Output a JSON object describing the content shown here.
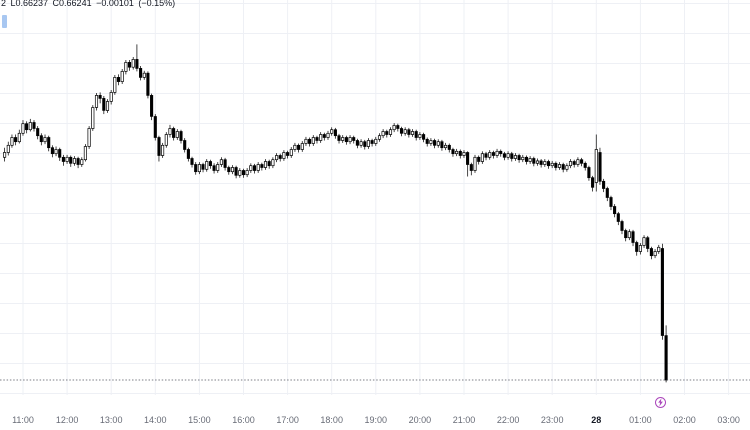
{
  "legend": {
    "text": "2 L0.66237 C0.66241 −0.00101 (−0.15%)"
  },
  "colors": {
    "background": "#ffffff",
    "grid": "#eef0f5",
    "axis_border": "#e6e8ee",
    "candle_up_fill": "#ffffff",
    "candle_down_fill": "#000000",
    "candle_border": "#000000",
    "wick": "#1a1a1a",
    "price_line": "#50535e",
    "axis_label": "#676b76",
    "axis_label_day": "#131722",
    "legend_text": "#131722",
    "event_marker": "#ab47bc",
    "selection_artifact": "#9ec1f0"
  },
  "time_axis": {
    "labels": [
      {
        "text": "11:00",
        "bold": false
      },
      {
        "text": "12:00",
        "bold": false
      },
      {
        "text": "13:00",
        "bold": false
      },
      {
        "text": "14:00",
        "bold": false
      },
      {
        "text": "15:00",
        "bold": false
      },
      {
        "text": "16:00",
        "bold": false
      },
      {
        "text": "17:00",
        "bold": false
      },
      {
        "text": "18:00",
        "bold": false
      },
      {
        "text": "19:00",
        "bold": false
      },
      {
        "text": "20:00",
        "bold": false
      },
      {
        "text": "21:00",
        "bold": false
      },
      {
        "text": "22:00",
        "bold": false
      },
      {
        "text": "23:00",
        "bold": false
      },
      {
        "text": "28",
        "bold": true
      },
      {
        "text": "01:00",
        "bold": false
      },
      {
        "text": "02:00",
        "bold": false
      },
      {
        "text": "03:00",
        "bold": false
      }
    ]
  },
  "event_marker": {
    "icon": "lightning-bolt",
    "color": "#ab47bc"
  },
  "price_line": {
    "value": 0.66241,
    "style": "dashed"
  },
  "chart_data": {
    "type": "candlestick",
    "title": "",
    "xlabel": "",
    "ylabel": "",
    "grid": true,
    "x_start_time": "10:35",
    "interval_minutes": 5,
    "x_axis_labels": [
      "11:00",
      "12:00",
      "13:00",
      "14:00",
      "15:00",
      "16:00",
      "17:00",
      "18:00",
      "19:00",
      "20:00",
      "21:00",
      "22:00",
      "23:00",
      "28",
      "01:00",
      "02:00",
      "03:00"
    ],
    "ylim": [
      0.66216,
      0.66874
    ],
    "last_close": 0.66241,
    "last_low": 0.66237,
    "change": -0.00101,
    "change_pct": -0.15,
    "candles_format": [
      "open",
      "high",
      "low",
      "close"
    ],
    "candles": [
      [
        0.66612,
        0.66628,
        0.66605,
        0.6662
      ],
      [
        0.6662,
        0.66638,
        0.66615,
        0.66632
      ],
      [
        0.66632,
        0.6665,
        0.66628,
        0.66645
      ],
      [
        0.66645,
        0.6665,
        0.66632,
        0.66638
      ],
      [
        0.66638,
        0.66658,
        0.66635,
        0.66652
      ],
      [
        0.66652,
        0.66674,
        0.66648,
        0.66668
      ],
      [
        0.66668,
        0.66672,
        0.66652,
        0.66658
      ],
      [
        0.66658,
        0.66676,
        0.66655,
        0.6667
      ],
      [
        0.6667,
        0.66674,
        0.66655,
        0.6666
      ],
      [
        0.6666,
        0.66664,
        0.66642,
        0.66648
      ],
      [
        0.66648,
        0.66652,
        0.66632,
        0.66638
      ],
      [
        0.66638,
        0.6665,
        0.66634,
        0.66645
      ],
      [
        0.66645,
        0.66648,
        0.66622,
        0.66628
      ],
      [
        0.66628,
        0.66632,
        0.66612,
        0.66618
      ],
      [
        0.66618,
        0.6663,
        0.66614,
        0.66625
      ],
      [
        0.66625,
        0.66628,
        0.66606,
        0.66612
      ],
      [
        0.66612,
        0.66616,
        0.66598,
        0.66605
      ],
      [
        0.66605,
        0.66616,
        0.66601,
        0.66612
      ],
      [
        0.66612,
        0.66615,
        0.66596,
        0.66602
      ],
      [
        0.66602,
        0.66614,
        0.66598,
        0.6661
      ],
      [
        0.6661,
        0.66613,
        0.66594,
        0.666
      ],
      [
        0.666,
        0.66612,
        0.66596,
        0.66608
      ],
      [
        0.66608,
        0.66634,
        0.66605,
        0.6663
      ],
      [
        0.6663,
        0.66664,
        0.66626,
        0.6666
      ],
      [
        0.6666,
        0.66699,
        0.66656,
        0.66695
      ],
      [
        0.66695,
        0.66719,
        0.6669,
        0.66715
      ],
      [
        0.66715,
        0.6672,
        0.66702,
        0.6671
      ],
      [
        0.6671,
        0.66714,
        0.66684,
        0.6669
      ],
      [
        0.6669,
        0.66709,
        0.66686,
        0.66705
      ],
      [
        0.66705,
        0.66724,
        0.667,
        0.6672
      ],
      [
        0.6672,
        0.66749,
        0.66716,
        0.66745
      ],
      [
        0.66745,
        0.6675,
        0.66732,
        0.66738
      ],
      [
        0.66738,
        0.66759,
        0.66734,
        0.66755
      ],
      [
        0.66755,
        0.66774,
        0.6675,
        0.6677
      ],
      [
        0.6677,
        0.66774,
        0.66756,
        0.66762
      ],
      [
        0.66762,
        0.66779,
        0.66758,
        0.66775
      ],
      [
        0.66775,
        0.668,
        0.66755,
        0.6676
      ],
      [
        0.6676,
        0.66764,
        0.6674,
        0.66745
      ],
      [
        0.66745,
        0.66756,
        0.66741,
        0.66752
      ],
      [
        0.66752,
        0.66755,
        0.6671,
        0.66715
      ],
      [
        0.66715,
        0.66718,
        0.66674,
        0.6668
      ],
      [
        0.6668,
        0.66684,
        0.6664,
        0.66645
      ],
      [
        0.66645,
        0.66648,
        0.66605,
        0.66615
      ],
      [
        0.66615,
        0.66636,
        0.66611,
        0.66632
      ],
      [
        0.66632,
        0.66654,
        0.66628,
        0.6665
      ],
      [
        0.6665,
        0.66666,
        0.66645,
        0.6666
      ],
      [
        0.6666,
        0.66663,
        0.6664,
        0.66645
      ],
      [
        0.66645,
        0.66659,
        0.66641,
        0.66655
      ],
      [
        0.66655,
        0.66658,
        0.66635,
        0.6664
      ],
      [
        0.6664,
        0.66644,
        0.6662,
        0.66625
      ],
      [
        0.66625,
        0.66628,
        0.66605,
        0.6661
      ],
      [
        0.6661,
        0.66613,
        0.66595,
        0.666
      ],
      [
        0.666,
        0.66604,
        0.66583,
        0.66588
      ],
      [
        0.66588,
        0.66604,
        0.66584,
        0.666
      ],
      [
        0.666,
        0.66603,
        0.66587,
        0.66592
      ],
      [
        0.66592,
        0.66609,
        0.66588,
        0.66605
      ],
      [
        0.66605,
        0.66608,
        0.66593,
        0.66598
      ],
      [
        0.66598,
        0.66602,
        0.66585,
        0.6659
      ],
      [
        0.6659,
        0.66604,
        0.66586,
        0.666
      ],
      [
        0.666,
        0.66612,
        0.66596,
        0.66608
      ],
      [
        0.66608,
        0.66611,
        0.6659,
        0.66595
      ],
      [
        0.66595,
        0.66598,
        0.66583,
        0.66588
      ],
      [
        0.66588,
        0.66599,
        0.66584,
        0.66595
      ],
      [
        0.66595,
        0.66598,
        0.66577,
        0.66582
      ],
      [
        0.66582,
        0.66594,
        0.66578,
        0.6659
      ],
      [
        0.6659,
        0.66593,
        0.66578,
        0.66583
      ],
      [
        0.66583,
        0.66594,
        0.66579,
        0.6659
      ],
      [
        0.6659,
        0.66602,
        0.66586,
        0.66598
      ],
      [
        0.66598,
        0.66601,
        0.66585,
        0.6659
      ],
      [
        0.6659,
        0.66604,
        0.66586,
        0.666
      ],
      [
        0.666,
        0.66603,
        0.6659,
        0.66595
      ],
      [
        0.66595,
        0.66609,
        0.66591,
        0.66605
      ],
      [
        0.66605,
        0.66608,
        0.66593,
        0.66598
      ],
      [
        0.66598,
        0.66612,
        0.66594,
        0.66608
      ],
      [
        0.66608,
        0.66619,
        0.66604,
        0.66615
      ],
      [
        0.66615,
        0.66618,
        0.66605,
        0.6661
      ],
      [
        0.6661,
        0.66624,
        0.66606,
        0.6662
      ],
      [
        0.6662,
        0.66623,
        0.6661,
        0.66615
      ],
      [
        0.66615,
        0.66629,
        0.66611,
        0.66625
      ],
      [
        0.66625,
        0.66636,
        0.66621,
        0.66632
      ],
      [
        0.66632,
        0.66635,
        0.6662,
        0.66625
      ],
      [
        0.66625,
        0.66639,
        0.66621,
        0.66635
      ],
      [
        0.66635,
        0.66646,
        0.66631,
        0.66642
      ],
      [
        0.66642,
        0.66645,
        0.6663,
        0.66635
      ],
      [
        0.66635,
        0.66649,
        0.66631,
        0.66645
      ],
      [
        0.66645,
        0.66648,
        0.66635,
        0.6664
      ],
      [
        0.6664,
        0.66654,
        0.66636,
        0.6665
      ],
      [
        0.6665,
        0.66653,
        0.6664,
        0.66645
      ],
      [
        0.66645,
        0.66656,
        0.66641,
        0.66652
      ],
      [
        0.66652,
        0.66662,
        0.66648,
        0.66658
      ],
      [
        0.66658,
        0.66661,
        0.66643,
        0.66648
      ],
      [
        0.66648,
        0.66651,
        0.66635,
        0.6664
      ],
      [
        0.6664,
        0.66649,
        0.66636,
        0.66645
      ],
      [
        0.66645,
        0.66648,
        0.66633,
        0.66638
      ],
      [
        0.66638,
        0.66649,
        0.66634,
        0.66645
      ],
      [
        0.66645,
        0.66648,
        0.66635,
        0.6664
      ],
      [
        0.6664,
        0.66643,
        0.66627,
        0.66632
      ],
      [
        0.66632,
        0.66642,
        0.66628,
        0.66638
      ],
      [
        0.66638,
        0.66641,
        0.66625,
        0.6663
      ],
      [
        0.6663,
        0.66644,
        0.66626,
        0.6664
      ],
      [
        0.6664,
        0.66643,
        0.6663,
        0.66635
      ],
      [
        0.66635,
        0.66646,
        0.66631,
        0.66642
      ],
      [
        0.66642,
        0.66652,
        0.66638,
        0.66648
      ],
      [
        0.66648,
        0.66659,
        0.66644,
        0.66655
      ],
      [
        0.66655,
        0.66658,
        0.66645,
        0.6665
      ],
      [
        0.6665,
        0.66662,
        0.66646,
        0.66658
      ],
      [
        0.66658,
        0.66669,
        0.66654,
        0.66665
      ],
      [
        0.66665,
        0.66668,
        0.66655,
        0.6666
      ],
      [
        0.6666,
        0.66663,
        0.66647,
        0.66652
      ],
      [
        0.66652,
        0.66662,
        0.66648,
        0.66658
      ],
      [
        0.66658,
        0.66661,
        0.66645,
        0.6665
      ],
      [
        0.6665,
        0.66659,
        0.66646,
        0.66655
      ],
      [
        0.66655,
        0.66658,
        0.6664,
        0.66645
      ],
      [
        0.66645,
        0.66654,
        0.66641,
        0.6665
      ],
      [
        0.6665,
        0.66653,
        0.66637,
        0.66642
      ],
      [
        0.66642,
        0.66645,
        0.6663,
        0.66635
      ],
      [
        0.66635,
        0.66644,
        0.66631,
        0.6664
      ],
      [
        0.6664,
        0.66643,
        0.66627,
        0.66632
      ],
      [
        0.66632,
        0.66642,
        0.66628,
        0.66638
      ],
      [
        0.66638,
        0.66641,
        0.66623,
        0.66628
      ],
      [
        0.66628,
        0.66636,
        0.66624,
        0.66632
      ],
      [
        0.66632,
        0.66635,
        0.6662,
        0.66625
      ],
      [
        0.66625,
        0.66628,
        0.66613,
        0.66618
      ],
      [
        0.66618,
        0.66626,
        0.66614,
        0.66622
      ],
      [
        0.66622,
        0.66625,
        0.6661,
        0.66615
      ],
      [
        0.66615,
        0.66624,
        0.66611,
        0.6662
      ],
      [
        0.6662,
        0.66622,
        0.6658,
        0.666
      ],
      [
        0.666,
        0.66603,
        0.66582,
        0.6659
      ],
      [
        0.6659,
        0.66616,
        0.66586,
        0.66612
      ],
      [
        0.66612,
        0.66615,
        0.666,
        0.66605
      ],
      [
        0.66605,
        0.66622,
        0.66601,
        0.66618
      ],
      [
        0.66618,
        0.66621,
        0.66607,
        0.66612
      ],
      [
        0.66612,
        0.66624,
        0.66608,
        0.6662
      ],
      [
        0.6662,
        0.66623,
        0.6661,
        0.66615
      ],
      [
        0.66615,
        0.66626,
        0.66611,
        0.66622
      ],
      [
        0.66622,
        0.66625,
        0.66613,
        0.66618
      ],
      [
        0.66618,
        0.66621,
        0.66607,
        0.66612
      ],
      [
        0.66612,
        0.66622,
        0.66608,
        0.66618
      ],
      [
        0.66618,
        0.66621,
        0.66605,
        0.6661
      ],
      [
        0.6661,
        0.66619,
        0.66606,
        0.66615
      ],
      [
        0.66615,
        0.66618,
        0.66603,
        0.66608
      ],
      [
        0.66608,
        0.66616,
        0.66604,
        0.66612
      ],
      [
        0.66612,
        0.66615,
        0.666,
        0.66605
      ],
      [
        0.66605,
        0.66614,
        0.66601,
        0.6661
      ],
      [
        0.6661,
        0.66613,
        0.66597,
        0.66602
      ],
      [
        0.66602,
        0.6661,
        0.66598,
        0.66606
      ],
      [
        0.66606,
        0.66609,
        0.66595,
        0.666
      ],
      [
        0.666,
        0.66609,
        0.66596,
        0.66605
      ],
      [
        0.66605,
        0.66608,
        0.66593,
        0.66598
      ],
      [
        0.66598,
        0.66606,
        0.66594,
        0.66602
      ],
      [
        0.66602,
        0.66605,
        0.6659,
        0.66595
      ],
      [
        0.66595,
        0.66604,
        0.66591,
        0.666
      ],
      [
        0.666,
        0.66603,
        0.66587,
        0.66592
      ],
      [
        0.66592,
        0.66602,
        0.66588,
        0.66598
      ],
      [
        0.66598,
        0.66609,
        0.66594,
        0.66605
      ],
      [
        0.66605,
        0.66608,
        0.66595,
        0.666
      ],
      [
        0.666,
        0.66612,
        0.66596,
        0.66608
      ],
      [
        0.66608,
        0.66611,
        0.66597,
        0.66602
      ],
      [
        0.66602,
        0.66605,
        0.6659,
        0.66595
      ],
      [
        0.66595,
        0.66598,
        0.66573,
        0.66578
      ],
      [
        0.66578,
        0.66581,
        0.66555,
        0.66562
      ],
      [
        0.6657,
        0.6665,
        0.66555,
        0.66625
      ],
      [
        0.6662,
        0.66628,
        0.66566,
        0.66572
      ],
      [
        0.66572,
        0.66576,
        0.66554,
        0.6656
      ],
      [
        0.6656,
        0.66563,
        0.66539,
        0.66545
      ],
      [
        0.66545,
        0.66548,
        0.66524,
        0.6653
      ],
      [
        0.6653,
        0.66534,
        0.66512,
        0.66518
      ],
      [
        0.66518,
        0.66521,
        0.66499,
        0.66505
      ],
      [
        0.66505,
        0.66508,
        0.66484,
        0.6649
      ],
      [
        0.6649,
        0.66493,
        0.66472,
        0.66478
      ],
      [
        0.66478,
        0.66492,
        0.66474,
        0.66488
      ],
      [
        0.66488,
        0.66491,
        0.66464,
        0.6647
      ],
      [
        0.6647,
        0.66473,
        0.66448,
        0.66455
      ],
      [
        0.66455,
        0.66469,
        0.6645,
        0.66465
      ],
      [
        0.66465,
        0.66482,
        0.66461,
        0.66478
      ],
      [
        0.66478,
        0.66481,
        0.66454,
        0.6646
      ],
      [
        0.6646,
        0.66463,
        0.66442,
        0.66448
      ],
      [
        0.66448,
        0.66459,
        0.66444,
        0.66455
      ],
      [
        0.66455,
        0.66466,
        0.66451,
        0.66462
      ],
      [
        0.6646,
        0.66468,
        0.66308,
        0.66315
      ],
      [
        0.66315,
        0.66332,
        0.66237,
        0.66241
      ]
    ]
  }
}
